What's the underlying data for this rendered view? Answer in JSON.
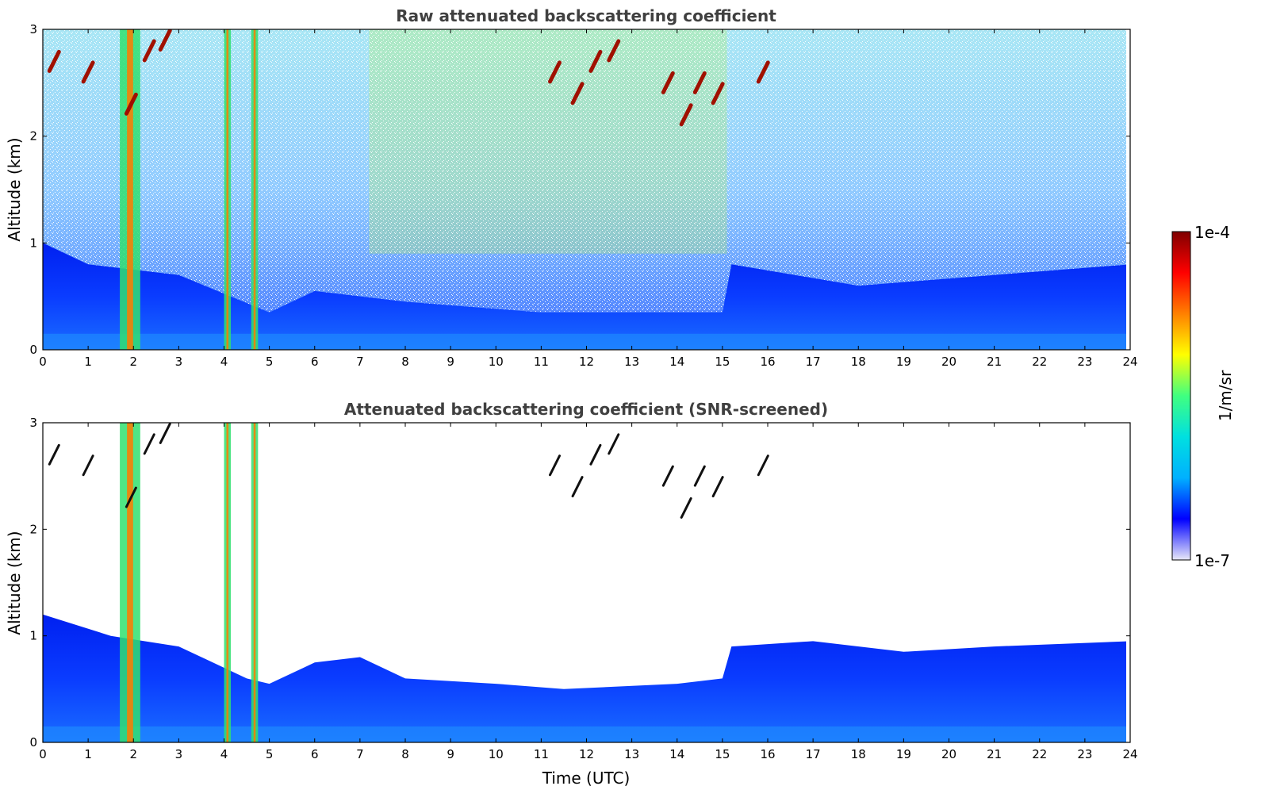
{
  "chart_data": [
    {
      "type": "heatmap",
      "title": "Raw attenuated backscattering coefficient",
      "xlabel": "",
      "ylabel": "Altitude (km)",
      "xlim": [
        0,
        24
      ],
      "ylim": [
        0,
        3
      ],
      "xticks": [
        "0",
        "1",
        "2",
        "3",
        "4",
        "5",
        "6",
        "7",
        "8",
        "9",
        "10",
        "11",
        "12",
        "13",
        "14",
        "15",
        "16",
        "17",
        "18",
        "19",
        "20",
        "21",
        "22",
        "23",
        "24"
      ],
      "yticks": [
        "0",
        "1",
        "2",
        "3"
      ],
      "grid": false,
      "features": {
        "boundary_layer_top_km": [
          {
            "t": 0,
            "h": 1.0
          },
          {
            "t": 1,
            "h": 0.8
          },
          {
            "t": 3,
            "h": 0.7
          },
          {
            "t": 5,
            "h": 0.35
          },
          {
            "t": 6,
            "h": 0.55
          },
          {
            "t": 8,
            "h": 0.45
          },
          {
            "t": 11,
            "h": 0.35
          },
          {
            "t": 15,
            "h": 0.35
          },
          {
            "t": 15.2,
            "h": 0.8
          },
          {
            "t": 18,
            "h": 0.6
          },
          {
            "t": 21,
            "h": 0.7
          },
          {
            "t": 24,
            "h": 0.8
          }
        ],
        "vertical_precip_bands_utc": [
          {
            "t0": 1.7,
            "t1": 2.15,
            "h_top": 3.0
          },
          {
            "t0": 4.0,
            "t1": 4.15,
            "h_top": 3.0
          },
          {
            "t0": 4.6,
            "t1": 4.75,
            "h_top": 3.0
          }
        ],
        "high_cloud_streaks": [
          {
            "t": 0.25,
            "h": 2.7
          },
          {
            "t": 1.0,
            "h": 2.6
          },
          {
            "t": 1.95,
            "h": 2.3
          },
          {
            "t": 2.35,
            "h": 2.8
          },
          {
            "t": 2.7,
            "h": 2.9
          },
          {
            "t": 11.3,
            "h": 2.6
          },
          {
            "t": 11.8,
            "h": 2.4
          },
          {
            "t": 12.2,
            "h": 2.7
          },
          {
            "t": 12.6,
            "h": 2.8
          },
          {
            "t": 13.8,
            "h": 2.5
          },
          {
            "t": 14.2,
            "h": 2.2
          },
          {
            "t": 14.5,
            "h": 2.5
          },
          {
            "t": 14.9,
            "h": 2.4
          },
          {
            "t": 15.9,
            "h": 2.6
          }
        ]
      }
    },
    {
      "type": "heatmap",
      "title": "Attenuated backscattering coefficient (SNR-screened)",
      "xlabel": "Time (UTC)",
      "ylabel": "Altitude (km)",
      "xlim": [
        0,
        24
      ],
      "ylim": [
        0,
        3
      ],
      "xticks": [
        "0",
        "1",
        "2",
        "3",
        "4",
        "5",
        "6",
        "7",
        "8",
        "9",
        "10",
        "11",
        "12",
        "13",
        "14",
        "15",
        "16",
        "17",
        "18",
        "19",
        "20",
        "21",
        "22",
        "23",
        "24"
      ],
      "yticks": [
        "0",
        "1",
        "2",
        "3"
      ],
      "grid": false,
      "features": {
        "screened_layer_top_km": [
          {
            "t": 0,
            "h": 1.2
          },
          {
            "t": 1.5,
            "h": 1.0
          },
          {
            "t": 3,
            "h": 0.9
          },
          {
            "t": 4.5,
            "h": 0.6
          },
          {
            "t": 5,
            "h": 0.55
          },
          {
            "t": 6,
            "h": 0.75
          },
          {
            "t": 7,
            "h": 0.8
          },
          {
            "t": 8,
            "h": 0.6
          },
          {
            "t": 10,
            "h": 0.55
          },
          {
            "t": 11.5,
            "h": 0.5
          },
          {
            "t": 14,
            "h": 0.55
          },
          {
            "t": 15,
            "h": 0.6
          },
          {
            "t": 15.2,
            "h": 0.9
          },
          {
            "t": 17,
            "h": 0.95
          },
          {
            "t": 19,
            "h": 0.85
          },
          {
            "t": 21,
            "h": 0.9
          },
          {
            "t": 24,
            "h": 0.95
          }
        ]
      }
    }
  ],
  "colorbar": {
    "label": "1/m/sr",
    "max_label": "1e-4",
    "min_label": "1e-7",
    "scale": "log",
    "colormap": "jet",
    "stops": [
      "#e8e8f8",
      "#0000ff",
      "#00b0ff",
      "#00e0e0",
      "#40ff80",
      "#ffff00",
      "#ff8000",
      "#ff0000",
      "#800000"
    ]
  },
  "colors": {
    "title": "#404040",
    "background": "#ffffff"
  }
}
